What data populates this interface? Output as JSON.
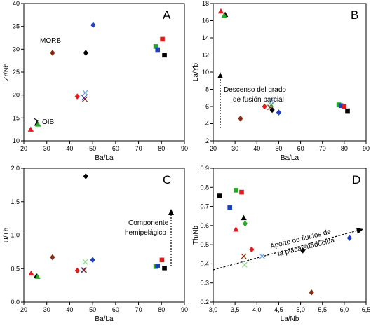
{
  "chart_data": [
    {
      "type": "scatter",
      "panel_label": "A",
      "xlabel": "Ba/La",
      "ylabel": "Zr/Nb",
      "xlim": [
        20,
        90
      ],
      "ylim": [
        10,
        40
      ],
      "xticks": [
        20,
        30,
        40,
        50,
        60,
        70,
        80,
        90
      ],
      "yticks": [
        10,
        15,
        20,
        25,
        30,
        35,
        40
      ],
      "points": [
        {
          "x": 23,
          "y": 12.5,
          "m": "tri",
          "c": "#e41a1c"
        },
        {
          "x": 25.8,
          "y": 13.8,
          "m": "tri",
          "c": "#000000"
        },
        {
          "x": 26.2,
          "y": 13.6,
          "m": "tri",
          "c": "#22aa22"
        },
        {
          "x": 32.5,
          "y": 29.2,
          "m": "dia",
          "c": "#8b2a12"
        },
        {
          "x": 43.3,
          "y": 19.7,
          "m": "dia",
          "c": "#e41a1c"
        },
        {
          "x": 46.3,
          "y": 19.4,
          "m": "x",
          "c": "#1f3fbf"
        },
        {
          "x": 46.6,
          "y": 19.1,
          "m": "x",
          "c": "#8b2a12"
        },
        {
          "x": 46.8,
          "y": 20.5,
          "m": "x",
          "c": "#6aa0e0"
        },
        {
          "x": 47.0,
          "y": 29.2,
          "m": "dia",
          "c": "#000000"
        },
        {
          "x": 50.2,
          "y": 35.3,
          "m": "dia",
          "c": "#1f3fbf"
        },
        {
          "x": 77.5,
          "y": 30.6,
          "m": "sq",
          "c": "#22aa22"
        },
        {
          "x": 78.3,
          "y": 29.9,
          "m": "sq",
          "c": "#1f3fbf"
        },
        {
          "x": 80.4,
          "y": 32.2,
          "m": "sq",
          "c": "#e41a1c"
        },
        {
          "x": 81.3,
          "y": 28.7,
          "m": "sq",
          "c": "#000000"
        }
      ],
      "annotations": [
        "MORB",
        "OIB"
      ]
    },
    {
      "type": "scatter",
      "panel_label": "B",
      "xlabel": "Ba/La",
      "ylabel": "La/Yb",
      "xlim": [
        20,
        90
      ],
      "ylim": [
        2,
        18
      ],
      "xticks": [
        20,
        30,
        40,
        50,
        60,
        70,
        80,
        90
      ],
      "yticks": [
        2,
        4,
        6,
        8,
        10,
        12,
        14,
        16,
        18
      ],
      "points": [
        {
          "x": 23.5,
          "y": 17.1,
          "m": "tri",
          "c": "#e41a1c"
        },
        {
          "x": 25.5,
          "y": 16.7,
          "m": "tri",
          "c": "#000000"
        },
        {
          "x": 25.0,
          "y": 16.6,
          "m": "tri",
          "c": "#22aa22"
        },
        {
          "x": 32.5,
          "y": 4.6,
          "m": "dia",
          "c": "#8b2a12"
        },
        {
          "x": 43.5,
          "y": 6.0,
          "m": "dia",
          "c": "#e41a1c"
        },
        {
          "x": 46.0,
          "y": 5.9,
          "m": "x",
          "c": "#8b2a12"
        },
        {
          "x": 46.5,
          "y": 6.2,
          "m": "x",
          "c": "#22aa22"
        },
        {
          "x": 46.8,
          "y": 6.6,
          "m": "x",
          "c": "#6aa0e0"
        },
        {
          "x": 47.0,
          "y": 5.6,
          "m": "dia",
          "c": "#000000"
        },
        {
          "x": 50.0,
          "y": 5.3,
          "m": "dia",
          "c": "#1f3fbf"
        },
        {
          "x": 77.5,
          "y": 6.2,
          "m": "sq",
          "c": "#22aa22"
        },
        {
          "x": 78.5,
          "y": 6.1,
          "m": "sq",
          "c": "#1f3fbf"
        },
        {
          "x": 80.0,
          "y": 6.0,
          "m": "sq",
          "c": "#e41a1c"
        },
        {
          "x": 81.5,
          "y": 5.5,
          "m": "sq",
          "c": "#000000"
        }
      ],
      "annotations": [
        "Descenso del grado",
        "de fusión parcial"
      ]
    },
    {
      "type": "scatter",
      "panel_label": "C",
      "xlabel": "Ba/La",
      "ylabel": "U/Th",
      "xlim": [
        20,
        90
      ],
      "ylim": [
        0,
        2.0
      ],
      "xticks": [
        20,
        30,
        40,
        50,
        60,
        70,
        80,
        90
      ],
      "yticks": [
        "0.0",
        "0.5",
        "1.0",
        "1.5",
        "2.0"
      ],
      "points": [
        {
          "x": 23.2,
          "y": 0.43,
          "m": "tri",
          "c": "#e41a1c"
        },
        {
          "x": 25.5,
          "y": 0.39,
          "m": "tri",
          "c": "#000000"
        },
        {
          "x": 26.0,
          "y": 0.38,
          "m": "tri",
          "c": "#22aa22"
        },
        {
          "x": 32.5,
          "y": 0.67,
          "m": "dia",
          "c": "#8b2a12"
        },
        {
          "x": 43.3,
          "y": 0.47,
          "m": "dia",
          "c": "#e41a1c"
        },
        {
          "x": 46.0,
          "y": 0.48,
          "m": "x",
          "c": "#1f3fbf"
        },
        {
          "x": 46.3,
          "y": 0.48,
          "m": "x",
          "c": "#8b2a12"
        },
        {
          "x": 46.8,
          "y": 0.6,
          "m": "x",
          "c": "#8ad88a"
        },
        {
          "x": 47.0,
          "y": 1.88,
          "m": "dia",
          "c": "#000000"
        },
        {
          "x": 50.0,
          "y": 0.63,
          "m": "dia",
          "c": "#1f3fbf"
        },
        {
          "x": 77.5,
          "y": 0.53,
          "m": "sq",
          "c": "#22aa22"
        },
        {
          "x": 78.3,
          "y": 0.54,
          "m": "sq",
          "c": "#1f3fbf"
        },
        {
          "x": 80.2,
          "y": 0.63,
          "m": "sq",
          "c": "#e41a1c"
        },
        {
          "x": 81.3,
          "y": 0.51,
          "m": "sq",
          "c": "#000000"
        }
      ],
      "annotations": [
        "Componente",
        "hemipelágico"
      ]
    },
    {
      "type": "scatter",
      "panel_label": "D",
      "xlabel": "La/Nb",
      "ylabel": "Th/Nb",
      "xlim": [
        3.0,
        6.5
      ],
      "ylim": [
        0.2,
        0.9
      ],
      "xticks": [
        "3,0",
        "3,5",
        "4,0",
        "4,5",
        "5,0",
        "5,5",
        "6,0",
        "6,5"
      ],
      "yticks": [
        "0.2",
        "0.3",
        "0.4",
        "0.5",
        "0.6",
        "0.7",
        "0.8",
        "0.9"
      ],
      "points": [
        {
          "x": 3.15,
          "y": 0.755,
          "m": "sq",
          "c": "#000000"
        },
        {
          "x": 3.38,
          "y": 0.695,
          "m": "sq",
          "c": "#1f3fbf"
        },
        {
          "x": 3.52,
          "y": 0.785,
          "m": "sq",
          "c": "#22aa22"
        },
        {
          "x": 3.65,
          "y": 0.775,
          "m": "sq",
          "c": "#e41a1c"
        },
        {
          "x": 3.52,
          "y": 0.58,
          "m": "tri",
          "c": "#e41a1c"
        },
        {
          "x": 3.7,
          "y": 0.64,
          "m": "tri",
          "c": "#000000"
        },
        {
          "x": 3.73,
          "y": 0.61,
          "m": "dia",
          "c": "#22aa22"
        },
        {
          "x": 3.7,
          "y": 0.44,
          "m": "x",
          "c": "#8b2a12"
        },
        {
          "x": 3.72,
          "y": 0.395,
          "m": "x",
          "c": "#8ad88a"
        },
        {
          "x": 3.88,
          "y": 0.475,
          "m": "dia",
          "c": "#e41a1c"
        },
        {
          "x": 4.12,
          "y": 0.44,
          "m": "x",
          "c": "#6aa0e0"
        },
        {
          "x": 5.05,
          "y": 0.47,
          "m": "dia",
          "c": "#000000"
        },
        {
          "x": 5.25,
          "y": 0.25,
          "m": "dia",
          "c": "#8b2a12"
        },
        {
          "x": 6.12,
          "y": 0.535,
          "m": "dia",
          "c": "#1f3fbf"
        }
      ],
      "annotations": [
        "Aporte de fluidos de",
        "la placa subducida"
      ]
    }
  ]
}
